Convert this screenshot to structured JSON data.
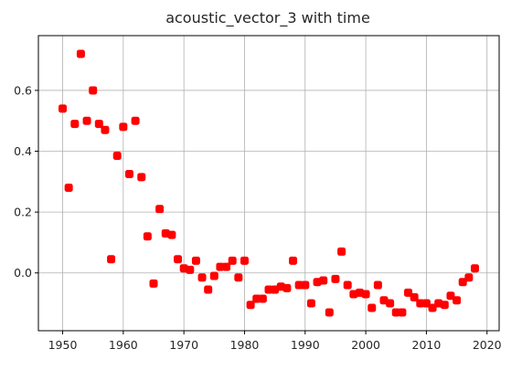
{
  "chart_data": {
    "type": "scatter",
    "title": "acoustic_vector_3 with time",
    "xlabel": "",
    "ylabel": "",
    "xlim": [
      1946.0,
      2022.0
    ],
    "ylim": [
      -0.19,
      0.78
    ],
    "x_ticks": [
      1950,
      1960,
      1970,
      1980,
      1990,
      2000,
      2010,
      2020
    ],
    "y_ticks": [
      0.0,
      0.2,
      0.4,
      0.6
    ],
    "x_tick_labels": [
      "1950",
      "1960",
      "1970",
      "1980",
      "1990",
      "2000",
      "2010",
      "2020"
    ],
    "y_tick_labels": [
      "0.0",
      "0.2",
      "0.4",
      "0.6"
    ],
    "grid": true,
    "marker_color": "#ff0000",
    "series": [
      {
        "x": [
          1950,
          1951,
          1952,
          1953,
          1954,
          1955,
          1956,
          1957,
          1958,
          1959,
          1960,
          1961,
          1962,
          1963,
          1964,
          1965,
          1966,
          1967,
          1968,
          1969,
          1970,
          1971,
          1972,
          1973,
          1974,
          1975,
          1976,
          1977,
          1978,
          1979,
          1980,
          1981,
          1982,
          1983,
          1984,
          1985,
          1986,
          1987,
          1988,
          1989,
          1990,
          1991,
          1992,
          1993,
          1994,
          1995,
          1996,
          1997,
          1998,
          1999,
          2000,
          2001,
          2002,
          2003,
          2004,
          2005,
          2006,
          2007,
          2008,
          2009,
          2010,
          2011,
          2012,
          2013,
          2014,
          2015,
          2016,
          2017,
          2018
        ],
        "y": [
          0.54,
          0.28,
          0.49,
          0.72,
          0.5,
          0.6,
          0.49,
          0.47,
          0.045,
          0.385,
          0.48,
          0.325,
          0.5,
          0.315,
          0.12,
          -0.035,
          0.21,
          0.13,
          0.125,
          0.045,
          0.015,
          0.01,
          0.04,
          -0.015,
          -0.055,
          -0.01,
          0.02,
          0.02,
          0.04,
          -0.015,
          0.04,
          -0.105,
          -0.085,
          -0.085,
          -0.055,
          -0.055,
          -0.045,
          -0.05,
          0.04,
          -0.04,
          -0.04,
          -0.1,
          -0.03,
          -0.025,
          -0.13,
          -0.02,
          0.07,
          -0.04,
          -0.07,
          -0.065,
          -0.07,
          -0.115,
          -0.04,
          -0.09,
          -0.1,
          -0.13,
          -0.13,
          -0.065,
          -0.08,
          -0.1,
          -0.1,
          -0.115,
          -0.1,
          -0.105,
          -0.075,
          -0.09,
          -0.03,
          -0.015,
          0.015
        ]
      }
    ]
  }
}
